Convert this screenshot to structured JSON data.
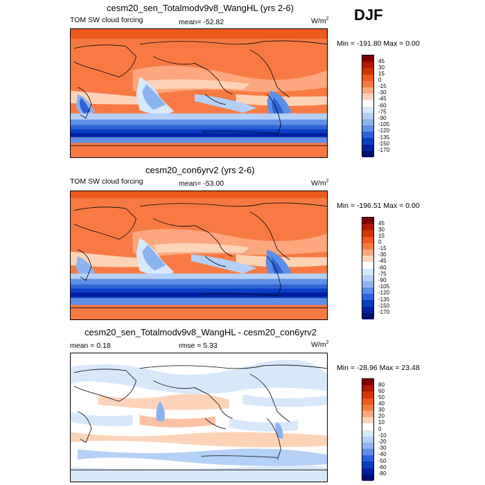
{
  "season": "DJF",
  "panels": [
    {
      "title": "cesm20_sen_Totalmodv9v8_WangHL (yrs 2-6)",
      "left_label": "TOM SW cloud forcing",
      "mid_label": "mean= -52.82",
      "units": "W/m",
      "units_sup": "2",
      "minmax": "Min = -191.80 Max =    0.00",
      "colorbar_levels": [
        "45",
        "30",
        "15",
        "0",
        "-15",
        "-30",
        "-45",
        "-60",
        "-75",
        "-90",
        "-105",
        "-120",
        "-135",
        "-150",
        "-170"
      ]
    },
    {
      "title": "cesm20_con6yrv2 (yrs 2-6)",
      "left_label": "TOM SW cloud forcing",
      "mid_label": "mean= -53.00",
      "units": "W/m",
      "units_sup": "2",
      "minmax": "Min = -196.51 Max =    0.00",
      "colorbar_levels": [
        "45",
        "30",
        "15",
        "0",
        "-15",
        "-30",
        "-45",
        "-60",
        "-75",
        "-90",
        "-105",
        "-120",
        "-135",
        "-150",
        "-170"
      ]
    },
    {
      "title": "cesm20_sen_Totalmodv9v8_WangHL - cesm20_con6yrv2",
      "left_label": "mean =   0.18",
      "mid_label": "rmse =   5.33",
      "units": "W/m",
      "units_sup": "2",
      "minmax": "Min = -28.96 Max =  23.48",
      "colorbar_levels": [
        "80",
        "60",
        "50",
        "40",
        "30",
        "20",
        "10",
        "0",
        "-10",
        "-20",
        "-30",
        "-40",
        "-50",
        "-60",
        "-80"
      ]
    }
  ],
  "colors": {
    "abs_scale": [
      "#7f0000",
      "#b01a00",
      "#d43500",
      "#ec5a1c",
      "#f77a45",
      "#fca77e",
      "#fdd3b8",
      "#ffffff",
      "#d8e8fb",
      "#b4d0f7",
      "#8cb3f0",
      "#5e8fe6",
      "#2f64d8",
      "#0a3fc4",
      "#0020a0",
      "#001070"
    ],
    "diff_scale": [
      "#7f0000",
      "#b01a00",
      "#d43500",
      "#ec5a1c",
      "#f77a45",
      "#fca77e",
      "#fdd3b8",
      "#ffffff",
      "#d8e8fb",
      "#b4d0f7",
      "#8cb3f0",
      "#5e8fe6",
      "#2f64d8",
      "#0a3fc4",
      "#0020a0",
      "#001070"
    ]
  }
}
